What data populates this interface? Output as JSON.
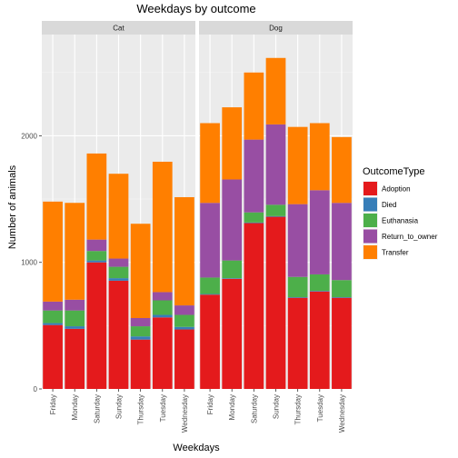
{
  "chart_data": {
    "type": "bar",
    "stacked": true,
    "title": "Weekdays by outcome",
    "xlabel": "Weekdays",
    "ylabel": "Number of animals",
    "ylim": [
      0,
      2800
    ],
    "yticks": [
      0,
      1000,
      2000
    ],
    "ytick_labels": [
      "0",
      "1000",
      "2000"
    ],
    "grid": true,
    "legend": {
      "title": "OutcomeType",
      "placement": "right",
      "entries": [
        "Adoption",
        "Died",
        "Euthanasia",
        "Return_to_owner",
        "Transfer"
      ]
    },
    "colors": {
      "Adoption": "#E41A1C",
      "Died": "#377EB8",
      "Euthanasia": "#4DAF4A",
      "Return_to_owner": "#984EA3",
      "Transfer": "#FF7F00"
    },
    "categories": [
      "Friday",
      "Monday",
      "Saturday",
      "Sunday",
      "Thursday",
      "Tuesday",
      "Wednesday"
    ],
    "facets": [
      {
        "name": "Cat",
        "series": [
          {
            "name": "Adoption",
            "values": [
              505,
              475,
              1000,
              855,
              390,
              565,
              470
            ]
          },
          {
            "name": "Died",
            "values": [
              15,
              20,
              15,
              20,
              25,
              20,
              20
            ]
          },
          {
            "name": "Euthanasia",
            "values": [
              100,
              125,
              75,
              90,
              80,
              115,
              95
            ]
          },
          {
            "name": "Return_to_owner",
            "values": [
              70,
              85,
              90,
              65,
              65,
              65,
              75
            ]
          },
          {
            "name": "Transfer",
            "values": [
              790,
              765,
              680,
              670,
              745,
              1030,
              855
            ]
          }
        ]
      },
      {
        "name": "Dog",
        "series": [
          {
            "name": "Adoption",
            "values": [
              745,
              870,
              1310,
              1360,
              720,
              770,
              720
            ]
          },
          {
            "name": "Died",
            "values": [
              5,
              5,
              5,
              5,
              5,
              5,
              5
            ]
          },
          {
            "name": "Euthanasia",
            "values": [
              130,
              140,
              80,
              90,
              160,
              130,
              135
            ]
          },
          {
            "name": "Return_to_owner",
            "values": [
              590,
              640,
              575,
              635,
              575,
              665,
              610
            ]
          },
          {
            "name": "Transfer",
            "values": [
              630,
              570,
              530,
              525,
              610,
              530,
              520
            ]
          }
        ]
      }
    ]
  }
}
